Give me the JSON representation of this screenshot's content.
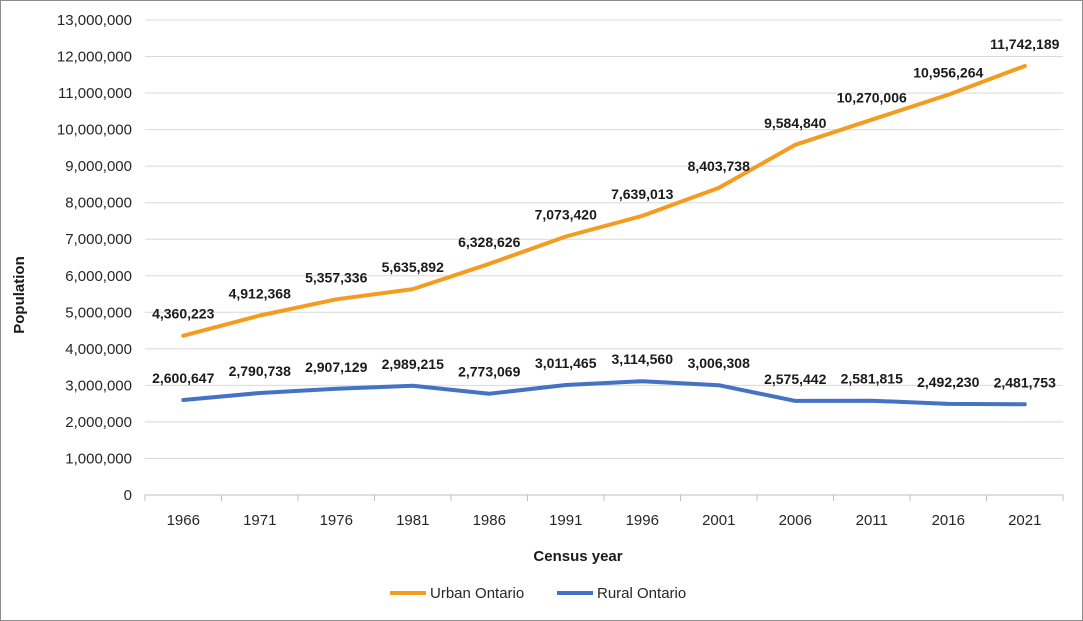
{
  "chart_data": {
    "type": "line",
    "xlabel": "Census year",
    "ylabel": "Population",
    "ylim": [
      0,
      13000000
    ],
    "y_tick_step": 1000000,
    "grid": true,
    "legend": "bottom",
    "categories": [
      "1966",
      "1971",
      "1976",
      "1981",
      "1986",
      "1991",
      "1996",
      "2001",
      "2006",
      "2011",
      "2016",
      "2021"
    ],
    "series": [
      {
        "name": "Urban Ontario",
        "color": "#f39c1f",
        "values": [
          4360223,
          4912368,
          5357336,
          5635892,
          6328626,
          7073420,
          7639013,
          8403738,
          9584840,
          10270006,
          10956264,
          11742189
        ],
        "labels": [
          "4,360,223",
          "4,912,368",
          "5,357,336",
          "5,635,892",
          "6,328,626",
          "7,073,420",
          "7,639,013",
          "8,403,738",
          "9,584,840",
          "10,270,006",
          "10,956,264",
          "11,742,189"
        ]
      },
      {
        "name": "Rural Ontario",
        "color": "#4472c4",
        "values": [
          2600647,
          2790738,
          2907129,
          2989215,
          2773069,
          3011465,
          3114560,
          3006308,
          2575442,
          2581815,
          2492230,
          2481753
        ],
        "labels": [
          "2,600,647",
          "2,790,738",
          "2,907,129",
          "2,989,215",
          "2,773,069",
          "3,011,465",
          "3,114,560",
          "3,006,308",
          "2,575,442",
          "2,581,815",
          "2,492,230",
          "2,481,753"
        ]
      }
    ],
    "y_tick_labels": [
      "0",
      "1,000,000",
      "2,000,000",
      "3,000,000",
      "4,000,000",
      "5,000,000",
      "6,000,000",
      "7,000,000",
      "8,000,000",
      "9,000,000",
      "10,000,000",
      "11,000,000",
      "12,000,000",
      "13,000,000"
    ]
  }
}
